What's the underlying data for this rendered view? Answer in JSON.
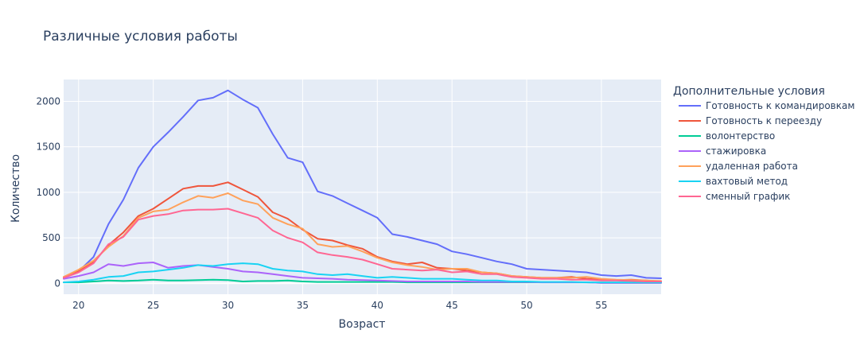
{
  "chart_data": {
    "type": "line",
    "title": "Различные условия работы",
    "xlabel": "Возраст",
    "ylabel": "Количество",
    "xlim": [
      19,
      59
    ],
    "ylim": [
      -120,
      2240
    ],
    "xticks": [
      20,
      25,
      30,
      35,
      40,
      45,
      50,
      55
    ],
    "yticks": [
      0,
      500,
      1000,
      1500,
      2000
    ],
    "grid": true,
    "legend_title": "Дополнительные условия",
    "legend_position": "right",
    "x": [
      19,
      20,
      21,
      22,
      23,
      24,
      25,
      26,
      27,
      28,
      29,
      30,
      31,
      32,
      33,
      34,
      35,
      36,
      37,
      38,
      39,
      40,
      41,
      42,
      43,
      44,
      45,
      46,
      47,
      48,
      49,
      50,
      51,
      52,
      53,
      54,
      55,
      56,
      57,
      58,
      59
    ],
    "series": [
      {
        "name": "Готовность к командировкам",
        "color": "#636efa",
        "values": [
          60,
          130,
          290,
          650,
          920,
          1270,
          1500,
          1660,
          1830,
          2010,
          2040,
          2120,
          2020,
          1930,
          1640,
          1380,
          1330,
          1010,
          960,
          880,
          800,
          720,
          540,
          510,
          470,
          430,
          350,
          320,
          280,
          240,
          210,
          160,
          150,
          140,
          130,
          120,
          90,
          80,
          90,
          60,
          55
        ]
      },
      {
        "name": "Готовность к переезду",
        "color": "#ef553b",
        "values": [
          70,
          130,
          230,
          420,
          560,
          740,
          820,
          930,
          1040,
          1070,
          1070,
          1110,
          1030,
          950,
          780,
          710,
          590,
          490,
          470,
          420,
          380,
          290,
          240,
          210,
          230,
          170,
          160,
          140,
          120,
          110,
          80,
          70,
          60,
          60,
          70,
          50,
          40,
          35,
          40,
          30,
          20
        ]
      },
      {
        "name": "волонтерство",
        "color": "#00cc96",
        "values": [
          10,
          10,
          20,
          30,
          25,
          30,
          40,
          30,
          30,
          35,
          40,
          35,
          20,
          25,
          25,
          30,
          20,
          15,
          15,
          15,
          15,
          15,
          15,
          10,
          10,
          10,
          10,
          10,
          10,
          10,
          10,
          10,
          10,
          10,
          10,
          10,
          5,
          5,
          5,
          5,
          5
        ]
      },
      {
        "name": "стажировка",
        "color": "#ab63fa",
        "values": [
          50,
          80,
          120,
          210,
          190,
          220,
          230,
          170,
          190,
          200,
          180,
          160,
          130,
          120,
          100,
          80,
          60,
          55,
          50,
          40,
          35,
          30,
          25,
          20,
          20,
          20,
          20,
          20,
          15,
          15,
          15,
          15,
          10,
          10,
          10,
          10,
          5,
          5,
          5,
          5,
          5
        ]
      },
      {
        "name": "удаленная работа",
        "color": "#ffa15a",
        "values": [
          70,
          150,
          250,
          400,
          520,
          720,
          790,
          810,
          890,
          960,
          940,
          990,
          910,
          870,
          720,
          650,
          600,
          430,
          400,
          410,
          350,
          280,
          230,
          200,
          180,
          150,
          160,
          160,
          120,
          110,
          80,
          70,
          60,
          60,
          60,
          70,
          50,
          40,
          35,
          30,
          25
        ]
      },
      {
        "name": "вахтовый метод",
        "color": "#19d3f3",
        "values": [
          10,
          20,
          40,
          70,
          80,
          120,
          130,
          150,
          170,
          200,
          190,
          210,
          220,
          210,
          160,
          140,
          130,
          100,
          90,
          100,
          80,
          60,
          70,
          60,
          50,
          50,
          50,
          40,
          30,
          30,
          20,
          20,
          15,
          15,
          15,
          10,
          10,
          10,
          10,
          10,
          10
        ]
      },
      {
        "name": "сменный график",
        "color": "#ff6692",
        "values": [
          60,
          120,
          220,
          430,
          510,
          700,
          740,
          760,
          800,
          810,
          810,
          820,
          770,
          720,
          580,
          500,
          450,
          340,
          310,
          290,
          260,
          210,
          160,
          150,
          140,
          150,
          120,
          130,
          100,
          100,
          70,
          60,
          50,
          50,
          40,
          40,
          30,
          30,
          25,
          20,
          20
        ]
      }
    ]
  }
}
